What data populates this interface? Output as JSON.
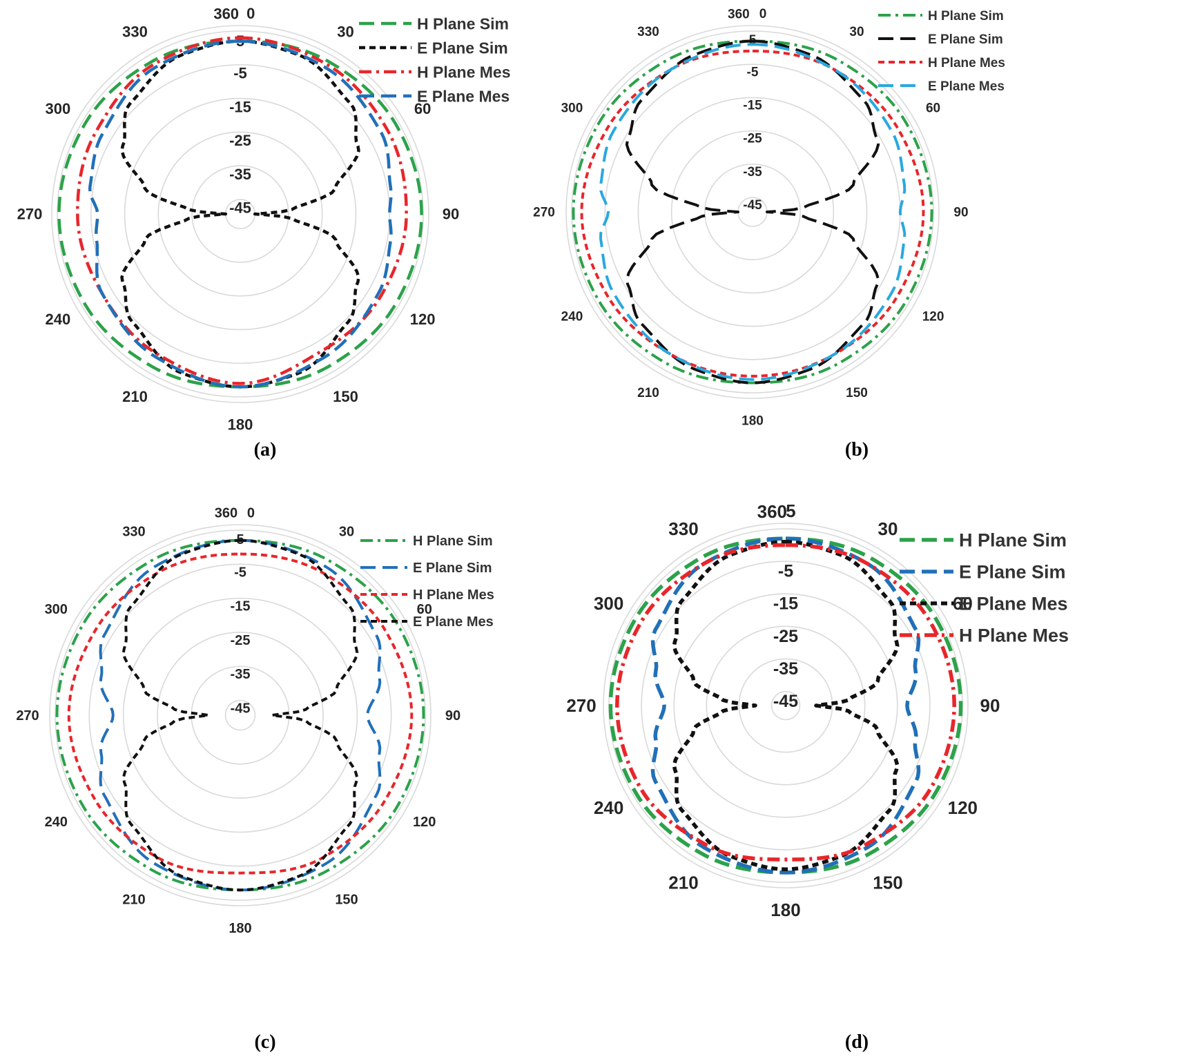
{
  "figure": {
    "panels": [
      {
        "caption": "(a)"
      },
      {
        "caption": "(b)"
      },
      {
        "caption": "(c)"
      },
      {
        "caption": "(d)"
      }
    ]
  },
  "chart_data": [
    {
      "panel": "(a)",
      "type": "polar_line",
      "angle_labels": [
        "0",
        "360",
        "30",
        "60",
        "90",
        "120",
        "150",
        "180",
        "210",
        "240",
        "270",
        "300",
        "330"
      ],
      "radial_tick_labels": [
        "5",
        "-5",
        "-15",
        "-25",
        "-35",
        "-45"
      ],
      "rlim": [
        -45,
        5
      ],
      "legend_position": "top-right",
      "series": [
        {
          "name": "H Plane Sim",
          "color": "#2ca24a",
          "style": "long-dash",
          "angles": [
            0,
            30,
            60,
            90,
            120,
            150,
            180,
            210,
            240,
            270,
            300,
            330,
            360
          ],
          "values": [
            2,
            3,
            4,
            4.5,
            4,
            3,
            2,
            3,
            4,
            4.5,
            4,
            3,
            2
          ]
        },
        {
          "name": "E Plane Sim",
          "color": "#111111",
          "style": "short-dash",
          "angles": [
            0,
            20,
            45,
            60,
            75,
            85,
            90,
            95,
            105,
            120,
            135,
            160,
            180,
            200,
            225,
            240,
            255,
            265,
            270,
            275,
            285,
            300,
            315,
            340,
            360
          ],
          "values": [
            2,
            1,
            -3,
            -9,
            -20,
            -34,
            -45,
            -34,
            -20,
            -9,
            -4,
            1,
            2,
            1,
            -4,
            -9,
            -20,
            -34,
            -45,
            -34,
            -20,
            -9,
            -3,
            1,
            2
          ]
        },
        {
          "name": "H Plane Mes",
          "color": "#e8262b",
          "style": "dash-dot",
          "angles": [
            0,
            30,
            60,
            90,
            120,
            150,
            180,
            210,
            240,
            270,
            300,
            330,
            360
          ],
          "values": [
            3,
            2,
            1,
            0,
            -1,
            -2,
            1,
            -1,
            -2,
            -1,
            0,
            2,
            3
          ]
        },
        {
          "name": "E Plane Mes",
          "color": "#2170b8",
          "style": "long-dash",
          "angles": [
            0,
            30,
            60,
            80,
            90,
            100,
            120,
            150,
            180,
            210,
            240,
            260,
            270,
            280,
            300,
            330,
            360
          ],
          "values": [
            2,
            1,
            -1,
            -4,
            -5,
            -4,
            -2,
            0,
            2,
            0,
            -2,
            -6,
            -7,
            -4,
            -2,
            1,
            2
          ]
        }
      ]
    },
    {
      "panel": "(b)",
      "type": "polar_line",
      "angle_labels": [
        "0",
        "360",
        "30",
        "60",
        "90",
        "120",
        "150",
        "180",
        "210",
        "240",
        "270",
        "300",
        "330"
      ],
      "radial_tick_labels": [
        "5",
        "-5",
        "-15",
        "-25",
        "-35",
        "-45"
      ],
      "rlim": [
        -45,
        5
      ],
      "legend_position": "top-right",
      "series": [
        {
          "name": "H Plane Sim",
          "color": "#2ca24a",
          "style": "dash-dot",
          "angles": [
            0,
            30,
            60,
            90,
            120,
            150,
            180,
            210,
            240,
            270,
            300,
            330,
            360
          ],
          "values": [
            2,
            3,
            4,
            4.5,
            4,
            3,
            2,
            3,
            4,
            4.5,
            4,
            3,
            2
          ]
        },
        {
          "name": "E Plane Sim",
          "color": "#111111",
          "style": "long-dash",
          "angles": [
            0,
            20,
            45,
            60,
            75,
            85,
            90,
            95,
            105,
            120,
            135,
            160,
            180,
            200,
            225,
            240,
            255,
            265,
            270,
            275,
            285,
            300,
            315,
            340,
            360
          ],
          "values": [
            2,
            1,
            -2,
            -6,
            -18,
            -34,
            -45,
            -34,
            -18,
            -6,
            -2,
            1,
            2,
            1,
            -2,
            -6,
            -18,
            -34,
            -45,
            -34,
            -18,
            -6,
            -2,
            1,
            2
          ]
        },
        {
          "name": "H Plane Mes",
          "color": "#e8262b",
          "style": "short-dash",
          "angles": [
            0,
            30,
            60,
            90,
            120,
            150,
            180,
            210,
            240,
            270,
            300,
            330,
            360
          ],
          "values": [
            -1,
            0,
            1,
            2,
            1,
            0,
            0,
            0,
            1,
            2,
            1,
            0,
            -1
          ]
        },
        {
          "name": "E Plane Mes",
          "color": "#29a8df",
          "style": "long-dash",
          "angles": [
            0,
            30,
            60,
            80,
            90,
            100,
            120,
            150,
            180,
            210,
            240,
            260,
            270,
            280,
            300,
            330,
            360
          ],
          "values": [
            1,
            0,
            -1,
            -3,
            -5,
            -3,
            -1,
            0,
            1,
            0,
            -1,
            -3,
            -6,
            -3,
            -1,
            0,
            1
          ]
        }
      ]
    },
    {
      "panel": "(c)",
      "type": "polar_line",
      "angle_labels": [
        "0",
        "360",
        "30",
        "60",
        "90",
        "120",
        "150",
        "180",
        "210",
        "240",
        "270",
        "300",
        "330"
      ],
      "radial_tick_labels": [
        "5",
        "-5",
        "-15",
        "-25",
        "-35",
        "-45"
      ],
      "rlim": [
        -45,
        5
      ],
      "legend_position": "top-right",
      "series": [
        {
          "name": "H Plane Sim",
          "color": "#2ca24a",
          "style": "dash-dot",
          "angles": [
            0,
            30,
            60,
            90,
            120,
            150,
            180,
            210,
            240,
            270,
            300,
            330,
            360
          ],
          "values": [
            2,
            3,
            4,
            4.5,
            4,
            3,
            2,
            3,
            4,
            4.5,
            4,
            3,
            2
          ]
        },
        {
          "name": "E Plane Sim",
          "color": "#2170b8",
          "style": "long-dash",
          "angles": [
            0,
            30,
            60,
            75,
            90,
            105,
            120,
            150,
            180,
            210,
            240,
            255,
            270,
            285,
            300,
            330,
            360
          ],
          "values": [
            2,
            1,
            -3,
            -7,
            -12,
            -7,
            -3,
            1,
            2,
            1,
            -3,
            -7,
            -12,
            -7,
            -3,
            1,
            2
          ]
        },
        {
          "name": "H Plane Mes",
          "color": "#e8262b",
          "style": "short-dash",
          "angles": [
            0,
            30,
            60,
            90,
            120,
            150,
            180,
            210,
            240,
            270,
            300,
            330,
            360
          ],
          "values": [
            -2,
            -1,
            0,
            1,
            0,
            -1,
            -3,
            -1,
            0,
            1,
            0,
            -1,
            -2
          ]
        },
        {
          "name": "E Plane Mes",
          "color": "#111111",
          "style": "short-dash",
          "angles": [
            0,
            20,
            45,
            60,
            75,
            85,
            90,
            95,
            105,
            120,
            135,
            160,
            180,
            200,
            225,
            240,
            255,
            265,
            270,
            275,
            285,
            300,
            315,
            340,
            360
          ],
          "values": [
            2,
            1,
            -4,
            -10,
            -20,
            -30,
            -40,
            -30,
            -20,
            -10,
            -4,
            1,
            2,
            1,
            -4,
            -10,
            -20,
            -30,
            -40,
            -30,
            -20,
            -10,
            -4,
            1,
            2
          ]
        }
      ]
    },
    {
      "panel": "(d)",
      "type": "polar_line",
      "angle_labels": [
        "360",
        "5",
        "30",
        "60",
        "90",
        "120",
        "150",
        "180",
        "210",
        "240",
        "270",
        "300",
        "330"
      ],
      "radial_tick_labels": [
        "-5",
        "-15",
        "-25",
        "-35",
        "-45"
      ],
      "rlim": [
        -45,
        5
      ],
      "legend_position": "top-right",
      "series": [
        {
          "name": "H Plane Sim",
          "color": "#2ca24a",
          "style": "long-dash",
          "angles": [
            0,
            30,
            60,
            90,
            120,
            150,
            180,
            210,
            240,
            270,
            300,
            330,
            360
          ],
          "values": [
            2,
            3,
            4,
            4.5,
            4,
            3,
            2,
            3,
            4,
            4.5,
            4,
            3,
            2
          ]
        },
        {
          "name": "E Plane Sim",
          "color": "#2170b8",
          "style": "long-dash",
          "angles": [
            0,
            30,
            60,
            75,
            90,
            105,
            120,
            150,
            180,
            210,
            240,
            255,
            270,
            285,
            300,
            330,
            360
          ],
          "values": [
            2,
            1,
            -3,
            -8,
            -12,
            -8,
            -3,
            1,
            2,
            1,
            -3,
            -8,
            -12,
            -8,
            -3,
            1,
            2
          ]
        },
        {
          "name": "E Plane Mes",
          "color": "#111111",
          "style": "short-dash",
          "angles": [
            0,
            20,
            45,
            60,
            75,
            85,
            90,
            95,
            105,
            120,
            135,
            160,
            180,
            200,
            225,
            240,
            255,
            265,
            270,
            275,
            285,
            300,
            315,
            340,
            360
          ],
          "values": [
            1,
            0,
            -4,
            -10,
            -20,
            -30,
            -40,
            -30,
            -20,
            -10,
            -4,
            0,
            1,
            0,
            -4,
            -10,
            -20,
            -30,
            -40,
            -30,
            -20,
            -10,
            -4,
            0,
            1
          ]
        },
        {
          "name": "H Plane Mes",
          "color": "#e8262b",
          "style": "dash-dot",
          "angles": [
            0,
            30,
            60,
            90,
            120,
            150,
            180,
            210,
            240,
            270,
            300,
            330,
            360
          ],
          "values": [
            0,
            1,
            2,
            2.5,
            2,
            0,
            -2,
            0,
            2,
            2.5,
            2,
            1,
            0
          ]
        }
      ]
    }
  ]
}
